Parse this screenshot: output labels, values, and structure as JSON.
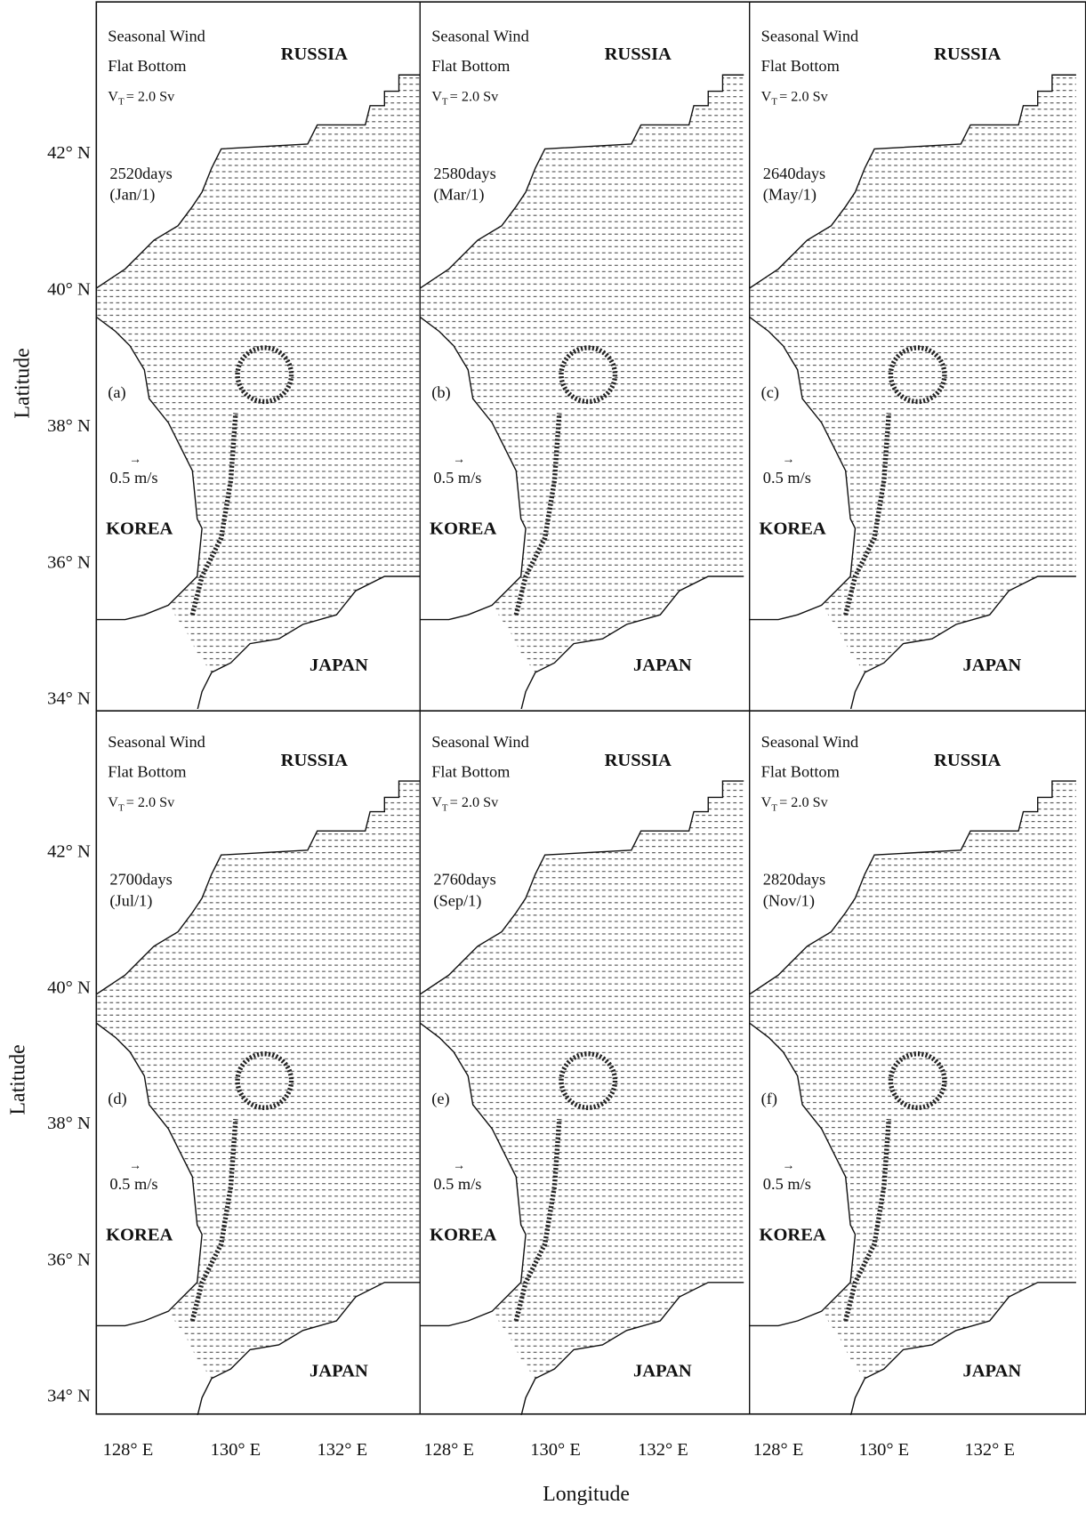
{
  "axes": {
    "x_label": "Longitude",
    "y_label": "Latitude",
    "y_ticks": [
      "42° N",
      "40° N",
      "38° N",
      "36° N",
      "34° N"
    ],
    "x_ticks": [
      "128° E",
      "130° E",
      "132° E"
    ]
  },
  "panels": [
    {
      "forcing": "Seasonal Wind",
      "bottom": "Flat Bottom",
      "transport": {
        "symbol": "V",
        "subscript": "T",
        "value": "= 2.0 Sv"
      },
      "time": "2520days",
      "date": "(Jan/1)",
      "letter": "(a)",
      "scale_arrow": "→",
      "scale": "0.5 m/s",
      "north": "RUSSIA",
      "west": "KOREA",
      "south": "JAPAN"
    },
    {
      "forcing": "Seasonal Wind",
      "bottom": "Flat Bottom",
      "transport": {
        "symbol": "V",
        "subscript": "T",
        "value": "= 2.0 Sv"
      },
      "time": "2580days",
      "date": "(Mar/1)",
      "letter": "(b)",
      "scale_arrow": "→",
      "scale": "0.5 m/s",
      "north": "RUSSIA",
      "west": "KOREA",
      "south": "JAPAN"
    },
    {
      "forcing": "Seasonal Wind",
      "bottom": "Flat Bottom",
      "transport": {
        "symbol": "V",
        "subscript": "T",
        "value": "= 2.0 Sv"
      },
      "time": "2640days",
      "date": "(May/1)",
      "letter": "(c)",
      "scale_arrow": "→",
      "scale": "0.5 m/s",
      "north": "RUSSIA",
      "west": "KOREA",
      "south": "JAPAN"
    },
    {
      "forcing": "Seasonal Wind",
      "bottom": "Flat Bottom",
      "transport": {
        "symbol": "V",
        "subscript": "T",
        "value": "= 2.0 Sv"
      },
      "time": "2700days",
      "date": "(Jul/1)",
      "letter": "(d)",
      "scale_arrow": "→",
      "scale": "0.5 m/s",
      "north": "RUSSIA",
      "west": "KOREA",
      "south": "JAPAN"
    },
    {
      "forcing": "Seasonal Wind",
      "bottom": "Flat Bottom",
      "transport": {
        "symbol": "V",
        "subscript": "T",
        "value": "= 2.0 Sv"
      },
      "time": "2760days",
      "date": "(Sep/1)",
      "letter": "(e)",
      "scale_arrow": "→",
      "scale": "0.5 m/s",
      "north": "RUSSIA",
      "west": "KOREA",
      "south": "JAPAN"
    },
    {
      "forcing": "Seasonal Wind",
      "bottom": "Flat Bottom",
      "transport": {
        "symbol": "V",
        "subscript": "T",
        "value": "= 2.0 Sv"
      },
      "time": "2820days",
      "date": "(Nov/1)",
      "letter": "(f)",
      "scale_arrow": "→",
      "scale": "0.5 m/s",
      "north": "RUSSIA",
      "west": "KOREA",
      "south": "JAPAN"
    }
  ]
}
